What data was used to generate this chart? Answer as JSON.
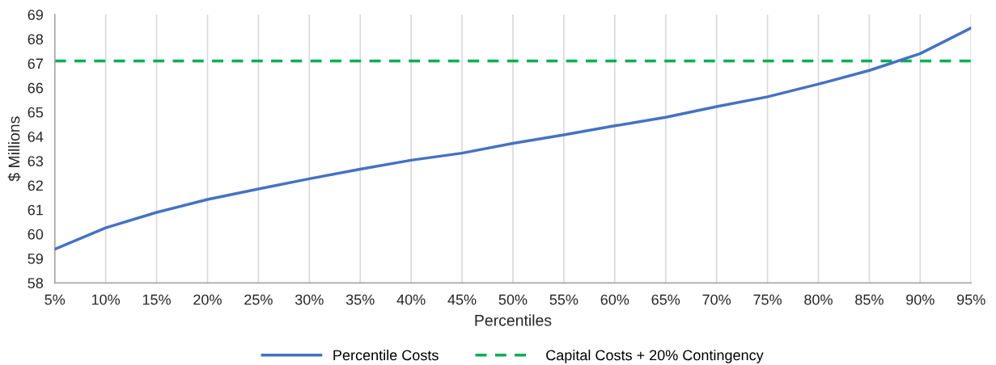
{
  "chart_data": {
    "type": "line",
    "xlabel": "Percentiles",
    "ylabel": "$ Millions",
    "categories": [
      "5%",
      "10%",
      "15%",
      "20%",
      "25%",
      "30%",
      "35%",
      "40%",
      "45%",
      "50%",
      "55%",
      "60%",
      "65%",
      "70%",
      "75%",
      "80%",
      "85%",
      "90%",
      "95%"
    ],
    "series": [
      {
        "name": "Percentile Costs",
        "color": "#4472c4",
        "values": [
          59.38,
          60.26,
          60.89,
          61.42,
          61.85,
          62.27,
          62.66,
          63.03,
          63.32,
          63.72,
          64.07,
          64.44,
          64.79,
          65.23,
          65.63,
          66.15,
          66.71,
          67.4,
          68.45
        ]
      }
    ],
    "ref_lines": [
      {
        "axis": "y",
        "value": 67.1,
        "label": "Capital Costs + 20% Contingency",
        "color": "#00b050",
        "line_style": "dashed"
      }
    ],
    "ylim": [
      58,
      69
    ],
    "yticks": [
      58,
      59,
      60,
      61,
      62,
      63,
      64,
      65,
      66,
      67,
      68,
      69
    ],
    "grid": "x",
    "legend": "bottom",
    "marker": "none",
    "line_style": "solid"
  }
}
